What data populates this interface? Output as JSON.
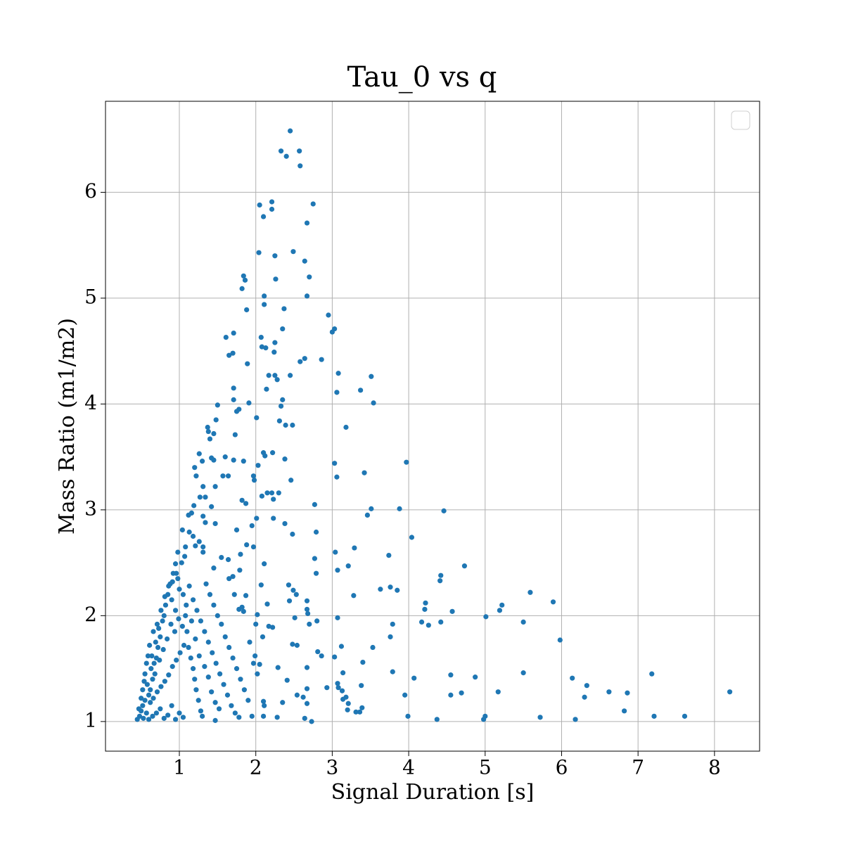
{
  "chart_data": {
    "type": "scatter",
    "title": "Tau_0 vs q",
    "xlabel": "Signal Duration [s]",
    "ylabel": "Mass Ratio (m1/m2)",
    "xlim": [
      0.034,
      8.59
    ],
    "ylim": [
      0.72,
      6.86
    ],
    "xticks": [
      1,
      2,
      3,
      4,
      5,
      6,
      7,
      8
    ],
    "yticks": [
      1,
      2,
      3,
      4,
      5,
      6
    ],
    "grid": true,
    "legend": "upper right",
    "series": [
      {
        "color": "#1f77b4",
        "x": [
          2.45,
          2.33,
          2.57,
          2.4,
          2.58,
          2.21,
          2.75,
          2.05,
          2.21,
          2.1,
          2.67,
          2.04,
          2.49,
          2.25,
          2.64,
          1.84,
          1.86,
          2.7,
          2.26,
          1.82,
          2.11,
          2.67,
          2.11,
          2.37,
          1.88,
          2.95,
          3.03,
          3.0,
          2.35,
          1.71,
          2.07,
          1.61,
          2.25,
          2.08,
          2.13,
          2.24,
          1.7,
          1.65,
          2.64,
          2.86,
          2.58,
          1.89,
          2.45,
          2.17,
          2.25,
          3.08,
          3.51,
          2.28,
          2.14,
          1.71,
          3.37,
          3.06,
          2.35,
          1.71,
          1.5,
          2.33,
          3.54,
          1.91,
          1.75,
          1.78,
          1.48,
          2.01,
          2.31,
          2.48,
          2.39,
          3.18,
          1.37,
          1.38,
          1.45,
          1.73,
          1.4,
          2.1,
          2.22,
          1.26,
          2.12,
          1.6,
          1.42,
          1.45,
          2.38,
          1.71,
          1.84,
          1.3,
          3.97,
          3.03,
          2.03,
          1.2,
          3.42,
          1.57,
          1.64,
          1.97,
          3.06,
          1.98,
          2.46,
          1.22,
          1.31,
          1.47,
          2.3,
          2.15,
          2.21,
          2.08,
          1.27,
          1.34,
          2.23,
          1.82,
          1.87,
          2.77,
          3.51,
          3.88,
          1.19,
          1.42,
          4.46,
          3.46,
          1.31,
          2.01,
          2.23,
          1.16,
          1.12,
          1.34,
          2.38,
          1.47,
          1.04,
          1.75,
          1.13,
          2.79,
          1.95,
          2.48,
          4.04,
          1.18,
          1.88,
          1.97,
          1.31,
          1.21,
          1.08,
          3.29,
          0.98,
          3.04,
          1.8,
          3.74,
          1.07,
          2.77,
          1.64,
          2.11,
          4.73,
          3.21,
          0.95,
          3.07,
          1.79,
          2.79,
          4.42,
          0.96,
          4.41,
          1.7,
          2.07,
          2.43,
          3.76,
          3.63,
          3.85,
          2.49,
          5.59,
          3.28,
          2.53,
          1.87,
          5.89,
          2.67,
          2.44,
          4.22,
          5.22,
          2.15,
          2.67,
          4.21,
          5.19,
          4.57,
          2.68,
          1.78,
          1.84,
          2.02,
          5.01,
          3.07,
          2.51,
          4.17,
          4.42,
          5.5,
          4.26,
          3.79,
          2.8,
          2.0,
          2.17,
          2.22,
          2.7,
          3.76,
          2.09,
          5.98,
          3.12,
          2.48,
          2.54,
          3.53,
          2.81,
          2.86,
          3.03,
          1.99,
          2.05,
          3.4,
          2.29,
          2.67,
          5.5,
          3.79,
          4.55,
          7.18,
          3.14,
          4.87,
          6.14,
          4.07,
          2.41,
          6.33,
          3.38,
          3.07,
          3.13,
          2.67,
          2.93,
          3.08,
          5.17,
          6.62,
          8.2,
          6.86,
          4.69,
          4.55,
          3.95,
          2.54,
          2.62,
          6.3,
          3.18,
          3.21,
          3.14,
          2.67,
          2.35,
          2.1,
          2.11,
          3.39,
          3.2,
          3.36,
          3.31,
          6.82,
          7.21,
          7.61,
          3.99,
          5.0,
          4.98,
          5.72,
          6.18,
          4.37,
          2.73,
          2.64,
          2.28,
          1.95,
          2.1,
          1.47,
          0.45,
          0.48,
          0.5,
          0.52,
          0.55,
          0.53,
          0.57,
          0.6,
          0.62,
          0.58,
          0.65,
          0.63,
          0.67,
          0.7,
          0.68,
          0.72,
          0.75,
          0.73,
          0.78,
          0.8,
          0.82,
          0.85,
          0.88,
          0.9,
          0.92,
          0.95,
          0.98,
          1.0,
          1.03,
          1.05,
          1.08,
          1.1,
          1.12,
          1.15,
          1.18,
          1.2,
          1.22,
          1.25,
          1.28,
          1.3,
          0.6,
          0.65,
          0.7,
          0.75,
          0.8,
          0.85,
          0.9,
          0.95,
          1.0,
          1.05,
          0.62,
          0.66,
          0.71,
          0.76,
          0.81,
          0.86,
          0.91,
          0.96,
          1.01,
          1.06,
          0.64,
          0.69,
          0.74,
          0.79,
          0.84,
          0.89,
          0.94,
          0.99,
          1.04,
          1.09,
          0.55,
          0.57,
          0.59,
          0.52,
          0.5,
          0.47,
          0.54,
          0.61,
          0.66,
          0.71,
          0.76,
          0.81,
          0.86,
          0.91,
          1.13,
          1.18,
          1.23,
          1.28,
          1.33,
          1.38,
          1.43,
          1.48,
          1.53,
          1.58,
          1.63,
          1.68,
          1.73,
          1.78,
          1.35,
          1.4,
          1.45,
          1.5,
          1.55,
          1.6,
          1.65,
          1.7,
          1.75,
          1.8,
          1.85,
          1.9,
          1.42,
          1.47,
          1.52,
          1.38,
          1.33,
          1.26,
          1.21,
          1.16,
          1.31,
          1.26,
          1.45,
          1.55,
          1.65,
          1.72,
          1.82,
          1.92,
          1.97,
          2.02
        ],
        "values": [
          6.58,
          6.39,
          6.39,
          6.34,
          6.25,
          5.91,
          5.89,
          5.88,
          5.84,
          5.77,
          5.71,
          5.43,
          5.44,
          5.4,
          5.35,
          5.21,
          5.17,
          5.2,
          5.18,
          5.09,
          5.02,
          5.02,
          4.94,
          4.9,
          4.89,
          4.84,
          4.71,
          4.68,
          4.71,
          4.67,
          4.63,
          4.63,
          4.58,
          4.54,
          4.53,
          4.49,
          4.48,
          4.46,
          4.43,
          4.42,
          4.4,
          4.38,
          4.27,
          4.27,
          4.27,
          4.29,
          4.26,
          4.23,
          4.14,
          4.15,
          4.13,
          4.11,
          4.04,
          4.04,
          3.99,
          3.98,
          4.01,
          4.01,
          3.93,
          3.95,
          3.85,
          3.87,
          3.84,
          3.8,
          3.8,
          3.78,
          3.78,
          3.74,
          3.72,
          3.71,
          3.67,
          3.54,
          3.54,
          3.53,
          3.51,
          3.5,
          3.49,
          3.47,
          3.48,
          3.47,
          3.46,
          3.46,
          3.45,
          3.44,
          3.42,
          3.4,
          3.35,
          3.32,
          3.32,
          3.32,
          3.31,
          3.28,
          3.28,
          3.32,
          3.22,
          3.22,
          3.16,
          3.16,
          3.16,
          3.13,
          3.12,
          3.12,
          3.1,
          3.09,
          3.06,
          3.05,
          3.01,
          3.01,
          3.04,
          3.03,
          2.99,
          2.95,
          2.94,
          2.92,
          2.92,
          2.97,
          2.95,
          2.88,
          2.87,
          2.87,
          2.81,
          2.81,
          2.79,
          2.79,
          2.85,
          2.77,
          2.74,
          2.75,
          2.67,
          2.65,
          2.65,
          2.66,
          2.65,
          2.64,
          2.6,
          2.6,
          2.58,
          2.57,
          2.56,
          2.54,
          2.53,
          2.49,
          2.47,
          2.47,
          2.49,
          2.43,
          2.43,
          2.4,
          2.38,
          2.4,
          2.33,
          2.37,
          2.29,
          2.29,
          2.27,
          2.25,
          2.24,
          2.24,
          2.22,
          2.19,
          2.2,
          2.19,
          2.13,
          2.14,
          2.14,
          2.12,
          2.1,
          2.11,
          2.06,
          2.06,
          2.05,
          2.04,
          2.02,
          2.06,
          2.04,
          2.01,
          1.99,
          1.98,
          1.98,
          1.94,
          1.94,
          1.94,
          1.91,
          1.92,
          1.95,
          1.92,
          1.9,
          1.89,
          1.92,
          1.8,
          1.8,
          1.77,
          1.71,
          1.73,
          1.72,
          1.7,
          1.66,
          1.62,
          1.61,
          1.62,
          1.54,
          1.56,
          1.51,
          1.51,
          1.46,
          1.47,
          1.44,
          1.45,
          1.46,
          1.42,
          1.41,
          1.41,
          1.39,
          1.34,
          1.34,
          1.36,
          1.29,
          1.31,
          1.32,
          1.32,
          1.28,
          1.28,
          1.28,
          1.27,
          1.27,
          1.25,
          1.25,
          1.25,
          1.23,
          1.23,
          1.23,
          1.17,
          1.21,
          1.17,
          1.18,
          1.19,
          1.15,
          1.13,
          1.11,
          1.09,
          1.09,
          1.1,
          1.05,
          1.05,
          1.05,
          1.05,
          1.02,
          1.04,
          1.02,
          1.02,
          1.0,
          1.03,
          1.04,
          1.05,
          1.05,
          1.01,
          1.02,
          1.05,
          1.1,
          1.15,
          1.2,
          1.03,
          1.08,
          1.25,
          1.3,
          1.35,
          1.4,
          1.5,
          1.55,
          1.6,
          1.45,
          1.7,
          1.8,
          1.88,
          1.95,
          2.0,
          2.1,
          2.2,
          2.3,
          2.15,
          2.4,
          2.05,
          2.35,
          2.25,
          2.5,
          2.2,
          2.0,
          1.85,
          1.7,
          1.6,
          1.5,
          1.4,
          1.3,
          1.2,
          1.1,
          1.05,
          1.02,
          1.05,
          1.08,
          1.12,
          1.03,
          1.06,
          1.15,
          1.02,
          1.08,
          1.04,
          1.18,
          1.22,
          1.28,
          1.33,
          1.38,
          1.44,
          1.52,
          1.58,
          1.65,
          1.72,
          1.62,
          1.75,
          1.58,
          1.68,
          1.78,
          1.92,
          1.85,
          1.97,
          1.9,
          2.1,
          1.45,
          1.55,
          1.62,
          1.3,
          1.22,
          1.12,
          1.38,
          1.72,
          1.85,
          1.92,
          2.05,
          2.18,
          2.28,
          2.32,
          2.28,
          2.15,
          2.05,
          1.95,
          1.85,
          1.75,
          1.65,
          1.55,
          1.45,
          1.35,
          1.25,
          1.15,
          1.08,
          1.04,
          2.3,
          2.2,
          2.1,
          2.0,
          1.92,
          1.8,
          1.7,
          1.6,
          1.5,
          1.4,
          1.3,
          1.2,
          1.28,
          1.18,
          1.12,
          1.42,
          1.52,
          1.62,
          1.78,
          1.95,
          2.6,
          2.7,
          2.45,
          2.55,
          2.35,
          2.2,
          2.08,
          1.75,
          1.55,
          1.45
        ]
      }
    ]
  }
}
